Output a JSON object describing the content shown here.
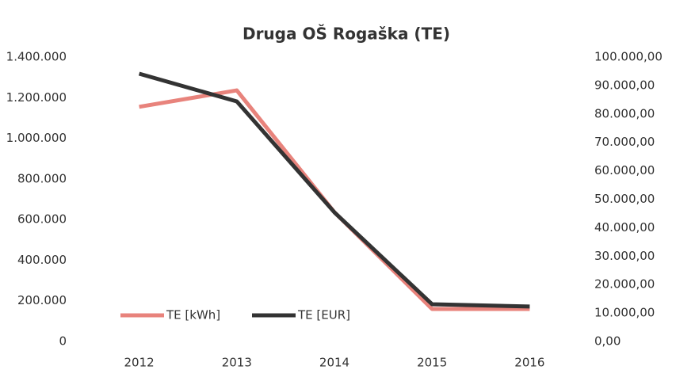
{
  "chart_data": {
    "type": "line",
    "title": "Druga OŠ Rogaška (TE)",
    "categories": [
      "2012",
      "2013",
      "2014",
      "2015",
      "2016"
    ],
    "series": [
      {
        "name": "TE [kWh]",
        "color": "#e8837c",
        "values": [
          1155000,
          1236000,
          636000,
          160000,
          160000
        ]
      },
      {
        "name": "TE [EUR]",
        "color": "#333333",
        "axis": "y2",
        "values": [
          94150,
          84400,
          45400,
          13100,
          12300
        ]
      }
    ],
    "ylim": [
      0,
      1400000
    ],
    "yticks": [
      {
        "value": 0,
        "label": "0"
      },
      {
        "value": 200000,
        "label": "200.000"
      },
      {
        "value": 400000,
        "label": "400.000"
      },
      {
        "value": 600000,
        "label": "600.000"
      },
      {
        "value": 800000,
        "label": "800.000"
      },
      {
        "value": 1000000,
        "label": "1.000.000"
      },
      {
        "value": 1200000,
        "label": "1.200.000"
      },
      {
        "value": 1400000,
        "label": "1.400.000"
      }
    ],
    "y2lim": [
      0,
      100000
    ],
    "y2ticks": [
      {
        "value": 0,
        "label": "0,00"
      },
      {
        "value": 10000,
        "label": "10.000,00"
      },
      {
        "value": 20000,
        "label": "20.000,00"
      },
      {
        "value": 30000,
        "label": "30.000,00"
      },
      {
        "value": 40000,
        "label": "40.000,00"
      },
      {
        "value": 50000,
        "label": "50.000,00"
      },
      {
        "value": 60000,
        "label": "60.000,00"
      },
      {
        "value": 70000,
        "label": "70.000,00"
      },
      {
        "value": 80000,
        "label": "80.000,00"
      },
      {
        "value": 90000,
        "label": "90.000,00"
      },
      {
        "value": 100000,
        "label": "100.000,00"
      }
    ],
    "grid": false,
    "legend": "lower left"
  }
}
